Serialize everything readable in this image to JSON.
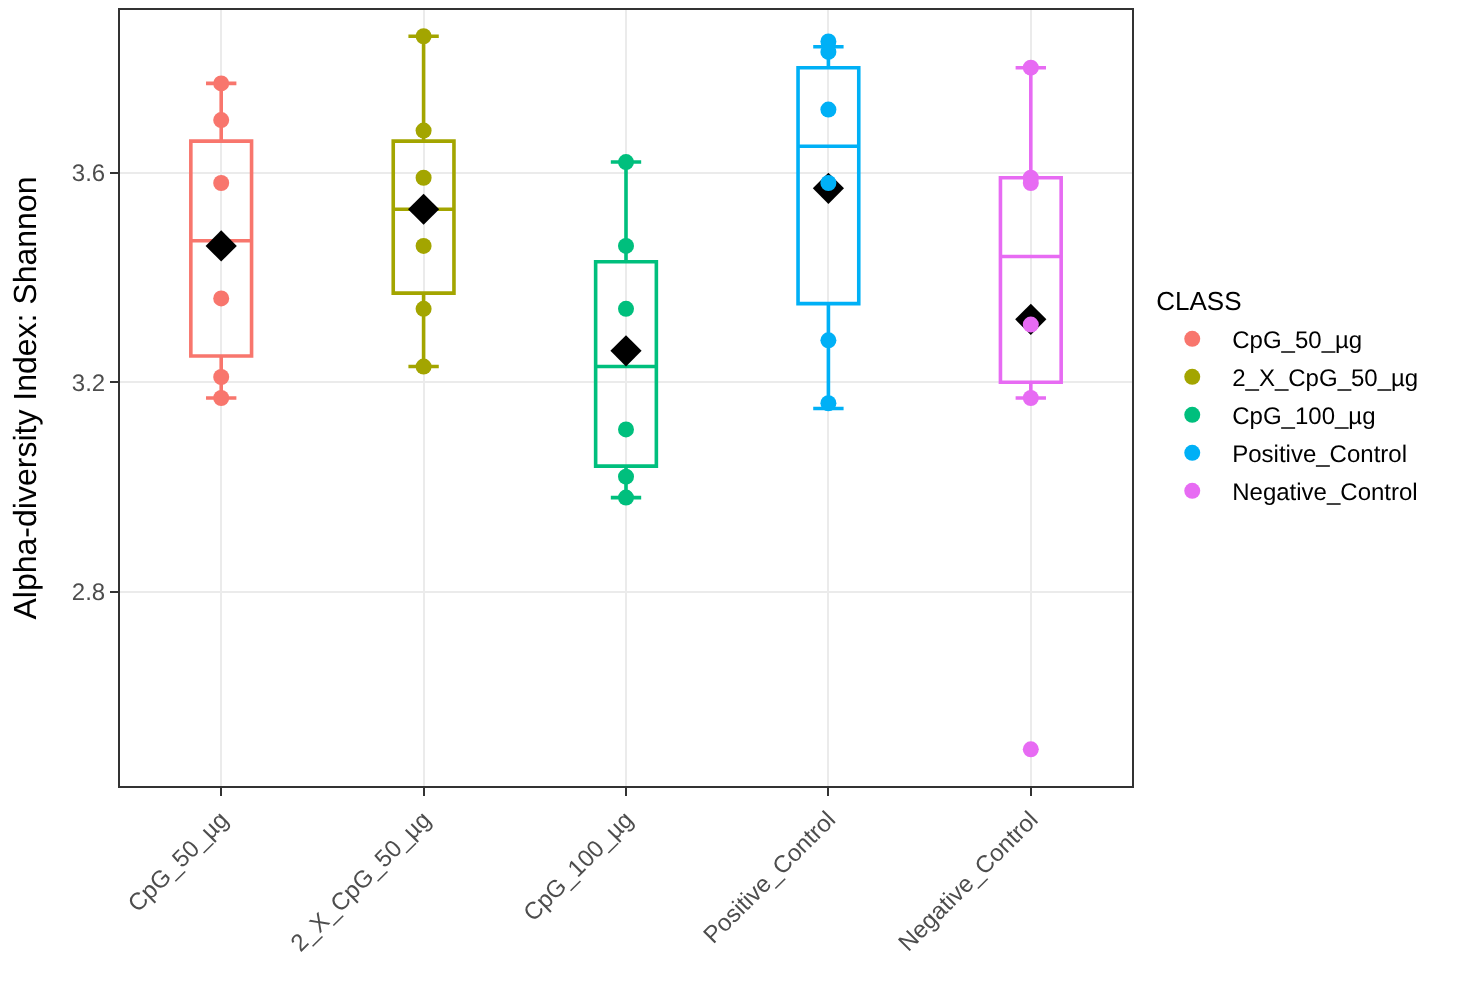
{
  "chart_data": {
    "type": "box",
    "ylabel": "Alpha-diversity Index: Shannon",
    "legend_title": "CLASS",
    "legend": "right",
    "grid": true,
    "marker": "circle",
    "categories": [
      "CpG_50_µg",
      "2_X_CpG_50_µg",
      "CpG_100_µg",
      "Positive_Control",
      "Negative_Control"
    ],
    "colors": [
      "#f8766d",
      "#a3a500",
      "#00bf7d",
      "#00b0f6",
      "#e76bf3"
    ],
    "ylim": [
      2.43,
      3.91
    ],
    "yticks": [
      2.8,
      3.2,
      3.6
    ],
    "boxes": [
      {
        "low": 3.17,
        "q1": 3.25,
        "median": 3.47,
        "q3": 3.66,
        "high": 3.77,
        "mean": 3.46
      },
      {
        "low": 3.23,
        "q1": 3.37,
        "median": 3.53,
        "q3": 3.66,
        "high": 3.86,
        "mean": 3.53
      },
      {
        "low": 2.98,
        "q1": 3.04,
        "median": 3.23,
        "q3": 3.43,
        "high": 3.62,
        "mean": 3.26
      },
      {
        "low": 3.15,
        "q1": 3.35,
        "median": 3.65,
        "q3": 3.8,
        "high": 3.84,
        "mean": 3.57
      },
      {
        "low": 3.17,
        "q1": 3.2,
        "median": 3.44,
        "q3": 3.59,
        "high": 3.8,
        "mean": 3.32,
        "outliers": [
          2.5
        ]
      }
    ],
    "series": [
      {
        "type": "scatter",
        "name": "CpG_50_µg",
        "color": "#f8766d",
        "x": [
          "CpG_50_µg",
          "CpG_50_µg",
          "CpG_50_µg",
          "CpG_50_µg",
          "CpG_50_µg",
          "CpG_50_µg"
        ],
        "values": [
          3.77,
          3.7,
          3.58,
          3.36,
          3.21,
          3.17
        ]
      },
      {
        "type": "scatter",
        "name": "2_X_CpG_50_µg",
        "color": "#a3a500",
        "x": [
          "2_X_CpG_50_µg",
          "2_X_CpG_50_µg",
          "2_X_CpG_50_µg",
          "2_X_CpG_50_µg",
          "2_X_CpG_50_µg",
          "2_X_CpG_50_µg"
        ],
        "values": [
          3.86,
          3.68,
          3.59,
          3.46,
          3.34,
          3.23
        ]
      },
      {
        "type": "scatter",
        "name": "CpG_100_µg",
        "color": "#00bf7d",
        "x": [
          "CpG_100_µg",
          "CpG_100_µg",
          "CpG_100_µg",
          "CpG_100_µg",
          "CpG_100_µg",
          "CpG_100_µg"
        ],
        "values": [
          3.62,
          3.46,
          3.34,
          3.11,
          3.02,
          2.98
        ]
      },
      {
        "type": "scatter",
        "name": "Positive_Control",
        "color": "#00b0f6",
        "x": [
          "Positive_Control",
          "Positive_Control",
          "Positive_Control",
          "Positive_Control",
          "Positive_Control",
          "Positive_Control"
        ],
        "values": [
          3.85,
          3.83,
          3.72,
          3.58,
          3.28,
          3.16
        ]
      },
      {
        "type": "scatter",
        "name": "Negative_Control",
        "color": "#e76bf3",
        "x": [
          "Negative_Control",
          "Negative_Control",
          "Negative_Control",
          "Negative_Control",
          "Negative_Control"
        ],
        "values": [
          3.8,
          3.59,
          3.58,
          3.31,
          3.17
        ]
      }
    ]
  }
}
